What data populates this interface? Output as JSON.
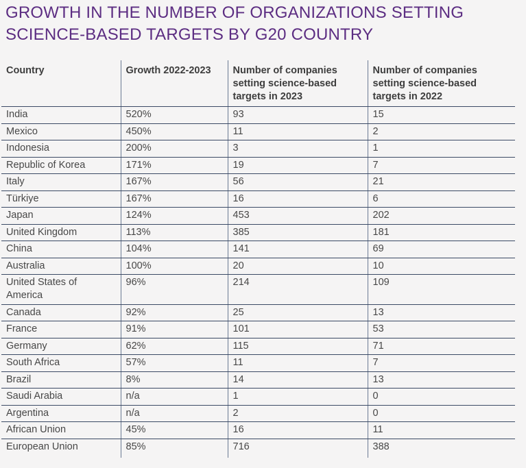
{
  "title": {
    "line1": "GROWTH IN THE NUMBER OF ORGANIZATIONS SETTING",
    "line2": "SCIENCE-BASED TARGETS BY G20 COUNTRY"
  },
  "colors": {
    "title_purple": "#5c2d82",
    "page_background": "#f5f4f4",
    "row_border": "#3a4964",
    "column_border": "#6b7a93",
    "body_text": "#474747",
    "header_text": "#3d3d3d"
  },
  "table": {
    "columns": [
      "Country",
      "Growth 2022-2023",
      "Number of companies setting science-based targets in 2023",
      "Number of companies setting science-based targets in 2022"
    ],
    "rows": [
      [
        "India",
        "520%",
        "93",
        "15"
      ],
      [
        "Mexico",
        "450%",
        "11",
        "2"
      ],
      [
        "Indonesia",
        "200%",
        "3",
        "1"
      ],
      [
        "Republic of Korea",
        "171%",
        "19",
        "7"
      ],
      [
        "Italy",
        "167%",
        "56",
        "21"
      ],
      [
        "Türkiye",
        "167%",
        "16",
        "6"
      ],
      [
        "Japan",
        "124%",
        "453",
        "202"
      ],
      [
        "United Kingdom",
        "113%",
        "385",
        "181"
      ],
      [
        "China",
        "104%",
        "141",
        "69"
      ],
      [
        "Australia",
        "100%",
        "20",
        "10"
      ],
      [
        "United States of America",
        "96%",
        "214",
        "109"
      ],
      [
        "Canada",
        "92%",
        "25",
        "13"
      ],
      [
        "France",
        "91%",
        "101",
        "53"
      ],
      [
        "Germany",
        "62%",
        "115",
        "71"
      ],
      [
        "South Africa",
        "57%",
        "11",
        "7"
      ],
      [
        "Brazil",
        "8%",
        "14",
        "13"
      ],
      [
        "Saudi Arabia",
        "n/a",
        "1",
        "0"
      ],
      [
        "Argentina",
        "n/a",
        "2",
        "0"
      ],
      [
        "African Union",
        "45%",
        "16",
        "11"
      ],
      [
        "European Union",
        "85%",
        "716",
        "388"
      ]
    ]
  }
}
